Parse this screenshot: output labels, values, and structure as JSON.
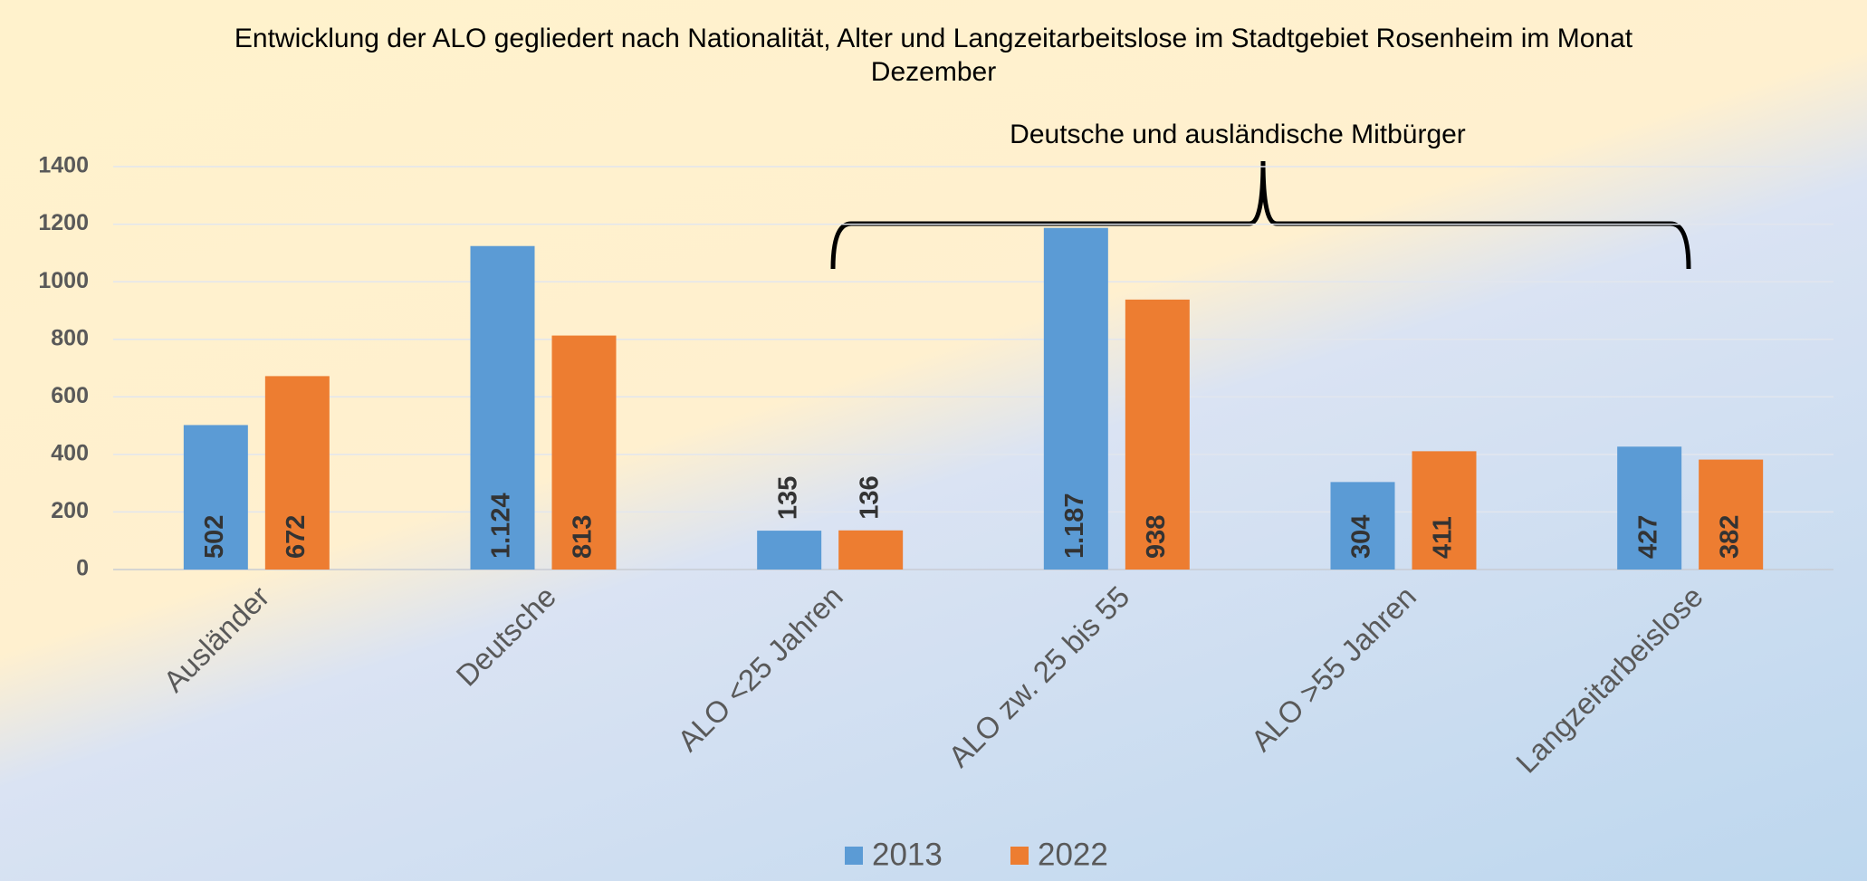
{
  "chart_data": {
    "type": "bar",
    "title": "Entwicklung der ALO gegliedert nach Nationalität, Alter und Langzeitarbeitslose im Stadtgebiet Rosenheim im Monat Dezember",
    "annotation": "Deutsche und ausländische Mitbürger",
    "categories": [
      "Ausländer",
      "Deutsche",
      "ALO <25 Jahren",
      "ALO zw. 25 bis 55",
      "ALO >55 Jahren",
      "Langzeitarbeislose"
    ],
    "series": [
      {
        "name": "2013",
        "color": "#5b9bd5",
        "values": [
          502,
          1124,
          135,
          1187,
          304,
          427
        ],
        "value_labels": [
          "502",
          "1.124",
          "135",
          "1.187",
          "304",
          "427"
        ]
      },
      {
        "name": "2022",
        "color": "#ed7d31",
        "values": [
          672,
          813,
          136,
          938,
          411,
          382
        ],
        "value_labels": [
          "672",
          "813",
          "136",
          "938",
          "411",
          "382"
        ]
      }
    ],
    "ylim": [
      0,
      1400
    ],
    "yticks": [
      0,
      200,
      400,
      600,
      800,
      1000,
      1200,
      1400
    ],
    "grid": true,
    "legend": "bottom"
  }
}
